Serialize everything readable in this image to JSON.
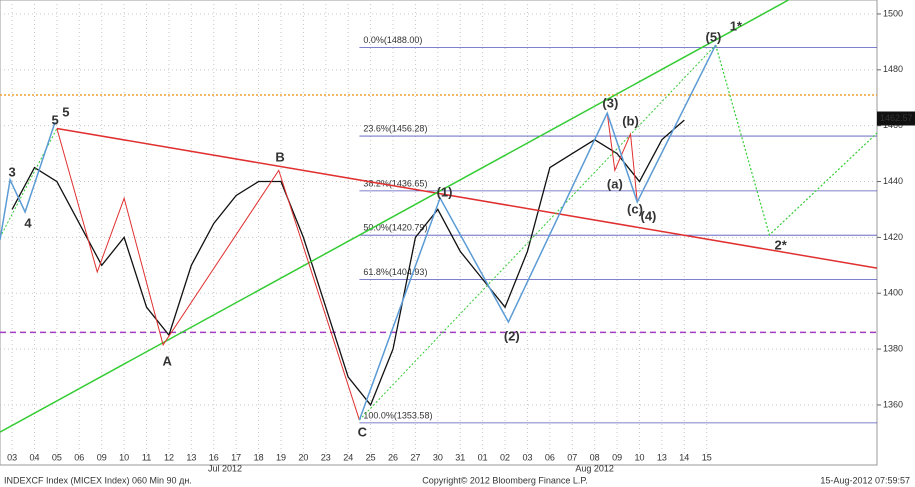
{
  "chart_data": {
    "type": "line",
    "categories": [
      "03",
      "04",
      "05",
      "06",
      "09",
      "10",
      "11",
      "12",
      "13",
      "16",
      "17",
      "18",
      "19",
      "20",
      "23",
      "24",
      "25",
      "26",
      "27",
      "30",
      "31",
      "01",
      "02",
      "03",
      "06",
      "07",
      "08",
      "09",
      "10",
      "13",
      "14",
      "15"
    ],
    "months": [
      {
        "label": "Jul 2012",
        "index": 9.5
      },
      {
        "label": "Aug 2012",
        "index": 26
      }
    ],
    "series": [
      {
        "name": "INDEXCF Index",
        "color": "#111111",
        "values": [
          1430,
          1445,
          1440,
          1425,
          1410,
          1420,
          1395,
          1385,
          1410,
          1425,
          1435,
          1440,
          1440,
          1420,
          1395,
          1370,
          1360,
          1380,
          1420,
          1430,
          1415,
          1405,
          1395,
          1415,
          1445,
          1450,
          1455,
          1450,
          1440,
          1455,
          1462,
          null
        ]
      }
    ],
    "last": 1462.57,
    "xlim": [
      -0.54,
      38.6
    ],
    "ylim": [
      1338.5,
      1505
    ],
    "yticks": [
      1360,
      1380,
      1400,
      1420,
      1440,
      1460,
      1480,
      1500
    ],
    "grid": true,
    "levels": [
      {
        "value": 1488,
        "label": "0.0%(1488.00)"
      },
      {
        "value": 1456.28,
        "label": "23.6%(1456.28)"
      },
      {
        "value": 1436.65,
        "label": "38.2%(1436.65)"
      },
      {
        "value": 1420.79,
        "label": "50.0%(1420.79)"
      },
      {
        "value": 1404.93,
        "label": "61.8%(1404.93)"
      },
      {
        "value": 1353.58,
        "label": "100.0%(1353.58)"
      }
    ],
    "levels_start": 15.5,
    "hlines": [
      {
        "value": 1471,
        "color": "#f0a030",
        "dash": "2 2"
      },
      {
        "value": 1386,
        "color": "#a040c0",
        "dash": "6 4"
      }
    ],
    "lines": [
      {
        "color": "#e03030",
        "width": 1.5,
        "points": [
          [
            2,
            1459
          ],
          [
            38.6,
            1409
          ]
        ]
      },
      {
        "color": "#33cc33",
        "width": 1.5,
        "points": [
          [
            -0.54,
            1350.3
          ],
          [
            34.65,
            1505
          ]
        ]
      },
      {
        "color": "#33cc33",
        "width": 1,
        "dash": "2 2",
        "points": [
          [
            15.5,
            1354.6
          ],
          [
            31.4,
            1488.9
          ]
        ]
      },
      {
        "color": "#33cc33",
        "width": 1.2,
        "dash": "2 2",
        "points": [
          [
            31.4,
            1488.9
          ],
          [
            33.8,
            1420.9
          ],
          [
            38.6,
            1457.4
          ]
        ]
      },
      {
        "color": "#33cc33",
        "width": 1,
        "dash": "2 2",
        "points": [
          [
            -0.54,
            1420
          ],
          [
            2,
            1459
          ]
        ]
      },
      {
        "color": "#e03030",
        "width": 1,
        "points": [
          [
            2,
            1459
          ],
          [
            3.8,
            1407.6
          ],
          [
            5,
            1434
          ],
          [
            6.74,
            1381.5
          ],
          [
            11.9,
            1444
          ],
          [
            15.5,
            1354.6
          ]
        ]
      },
      {
        "color": "#e03030",
        "width": 1,
        "points": [
          [
            26.56,
            1464.5
          ],
          [
            26.9,
            1444
          ],
          [
            27.6,
            1457
          ],
          [
            27.9,
            1432.7
          ]
        ]
      },
      {
        "color": "#5b9bd5",
        "width": 1.5,
        "points": [
          [
            -0.54,
            1419
          ],
          [
            -0.09,
            1440.6
          ],
          [
            0.58,
            1429.1
          ],
          [
            1.92,
            1461.3
          ]
        ]
      },
      {
        "color": "#5b9bd5",
        "width": 1.5,
        "points": [
          [
            15.5,
            1354.6
          ],
          [
            19.1,
            1434.1
          ],
          [
            22.15,
            1389.7
          ],
          [
            26.56,
            1464.5
          ],
          [
            27.9,
            1432.7
          ],
          [
            31.4,
            1488.9
          ]
        ]
      }
    ],
    "labels": [
      {
        "text": "3",
        "x": 0,
        "y": 1443,
        "color": "#5b9bd5"
      },
      {
        "text": "4",
        "x": 0.71,
        "y": 1424.8,
        "color": "#5b9bd5"
      },
      {
        "text": "5",
        "x": 1.92,
        "y": 1461.7,
        "color": "#5b9bd5"
      },
      {
        "text": "5",
        "x": 2.4,
        "y": 1464.5,
        "color": "#33bb33"
      },
      {
        "text": "A",
        "x": 6.92,
        "y": 1375.4,
        "color": "#dd2222"
      },
      {
        "text": "B",
        "x": 11.96,
        "y": 1448.4,
        "color": "#dd2222"
      },
      {
        "text": "C",
        "x": 15.63,
        "y": 1350,
        "color": "#dd2222"
      },
      {
        "text": "(1)",
        "x": 19.3,
        "y": 1435.9,
        "color": "#5b9bd5"
      },
      {
        "text": "(2)",
        "x": 22.3,
        "y": 1384.3,
        "color": "#5b9bd5"
      },
      {
        "text": "(3)",
        "x": 26.7,
        "y": 1467.8,
        "color": "#5b9bd5"
      },
      {
        "text": "(4)",
        "x": 28.4,
        "y": 1427.3,
        "color": "#5b9bd5"
      },
      {
        "text": "(5)",
        "x": 31.3,
        "y": 1491.4,
        "color": "#5b9bd5"
      },
      {
        "text": "(a)",
        "x": 26.9,
        "y": 1438.8,
        "color": "#dd2222"
      },
      {
        "text": "(b)",
        "x": 27.6,
        "y": 1461.3,
        "color": "#dd2222"
      },
      {
        "text": "(c)",
        "x": 27.8,
        "y": 1429.8,
        "color": "#dd2222"
      },
      {
        "text": "1*",
        "x": 32.3,
        "y": 1495.3,
        "color": "#33bb33"
      },
      {
        "text": "2*",
        "x": 34.3,
        "y": 1416.9,
        "color": "#33bb33"
      }
    ],
    "footer_left": "INDEXCF Index (MICEX Index) 060 Min 90 дн.",
    "footer_center": "Copyright© 2012 Bloomberg Finance L.P.",
    "footer_right": "15-Aug-2012 07:59:57"
  }
}
